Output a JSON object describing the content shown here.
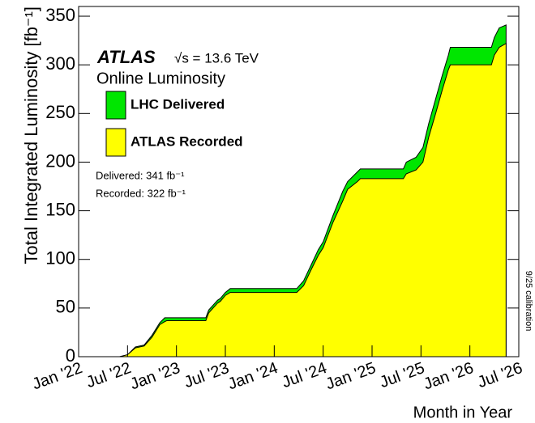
{
  "chart_data": {
    "type": "area",
    "experiment": "ATLAS",
    "energy": "√s = 13.6 TeV",
    "subtitle": "Online Luminosity",
    "y_label": "Total Integrated Luminosity [fb⁻¹]",
    "x_label": "Month in Year",
    "annotations": [
      "Delivered: 341 fb⁻¹",
      "Recorded: 322 fb⁻¹",
      "9/25 calibration"
    ],
    "x": [
      2022.0,
      2022.42,
      2022.5,
      2022.58,
      2022.67,
      2022.75,
      2022.83,
      2022.88,
      2022.9,
      2023.3,
      2023.33,
      2023.42,
      2023.45,
      2023.5,
      2023.55,
      2024.23,
      2024.3,
      2024.38,
      2024.45,
      2024.5,
      2024.6,
      2024.7,
      2024.75,
      2024.85,
      2024.88,
      2025.32,
      2025.35,
      2025.45,
      2025.52,
      2025.58,
      2025.65,
      2025.72,
      2025.78,
      2025.8,
      2026.22,
      2026.25,
      2026.3,
      2026.37
    ],
    "series": [
      {
        "name": "LHC Delivered",
        "color": "#00e600",
        "values": [
          0,
          0,
          2,
          10,
          12,
          22,
          35,
          40,
          40,
          40,
          48,
          58,
          60,
          66,
          70,
          70,
          78,
          95,
          110,
          118,
          145,
          170,
          180,
          190,
          193,
          193,
          200,
          205,
          215,
          240,
          265,
          290,
          310,
          318,
          318,
          328,
          338,
          341
        ]
      },
      {
        "name": "ATLAS Recorded",
        "color": "#ffff00",
        "values": [
          0,
          0,
          2,
          9,
          11,
          20,
          33,
          36,
          37,
          37,
          45,
          55,
          57,
          63,
          66,
          66,
          73,
          90,
          104,
          112,
          138,
          160,
          172,
          180,
          183,
          183,
          188,
          192,
          200,
          226,
          250,
          275,
          295,
          300,
          300,
          310,
          318,
          322
        ]
      }
    ],
    "xlim": [
      2022.0,
      2026.5
    ],
    "xticks": [
      {
        "value": 2022.0,
        "label": "Jan '22"
      },
      {
        "value": 2022.5,
        "label": "Jul '22"
      },
      {
        "value": 2023.0,
        "label": "Jan '23"
      },
      {
        "value": 2023.5,
        "label": "Jul '23"
      },
      {
        "value": 2024.0,
        "label": "Jan '24"
      },
      {
        "value": 2024.5,
        "label": "Jul '24"
      },
      {
        "value": 2025.0,
        "label": "Jan '25"
      },
      {
        "value": 2025.5,
        "label": "Jul '25"
      },
      {
        "value": 2026.0,
        "label": "Jan '26"
      },
      {
        "value": 2026.5,
        "label": "Jul '26"
      }
    ],
    "ylim": [
      0,
      360
    ],
    "yticks": [
      0,
      50,
      100,
      150,
      200,
      250,
      300,
      350
    ]
  }
}
